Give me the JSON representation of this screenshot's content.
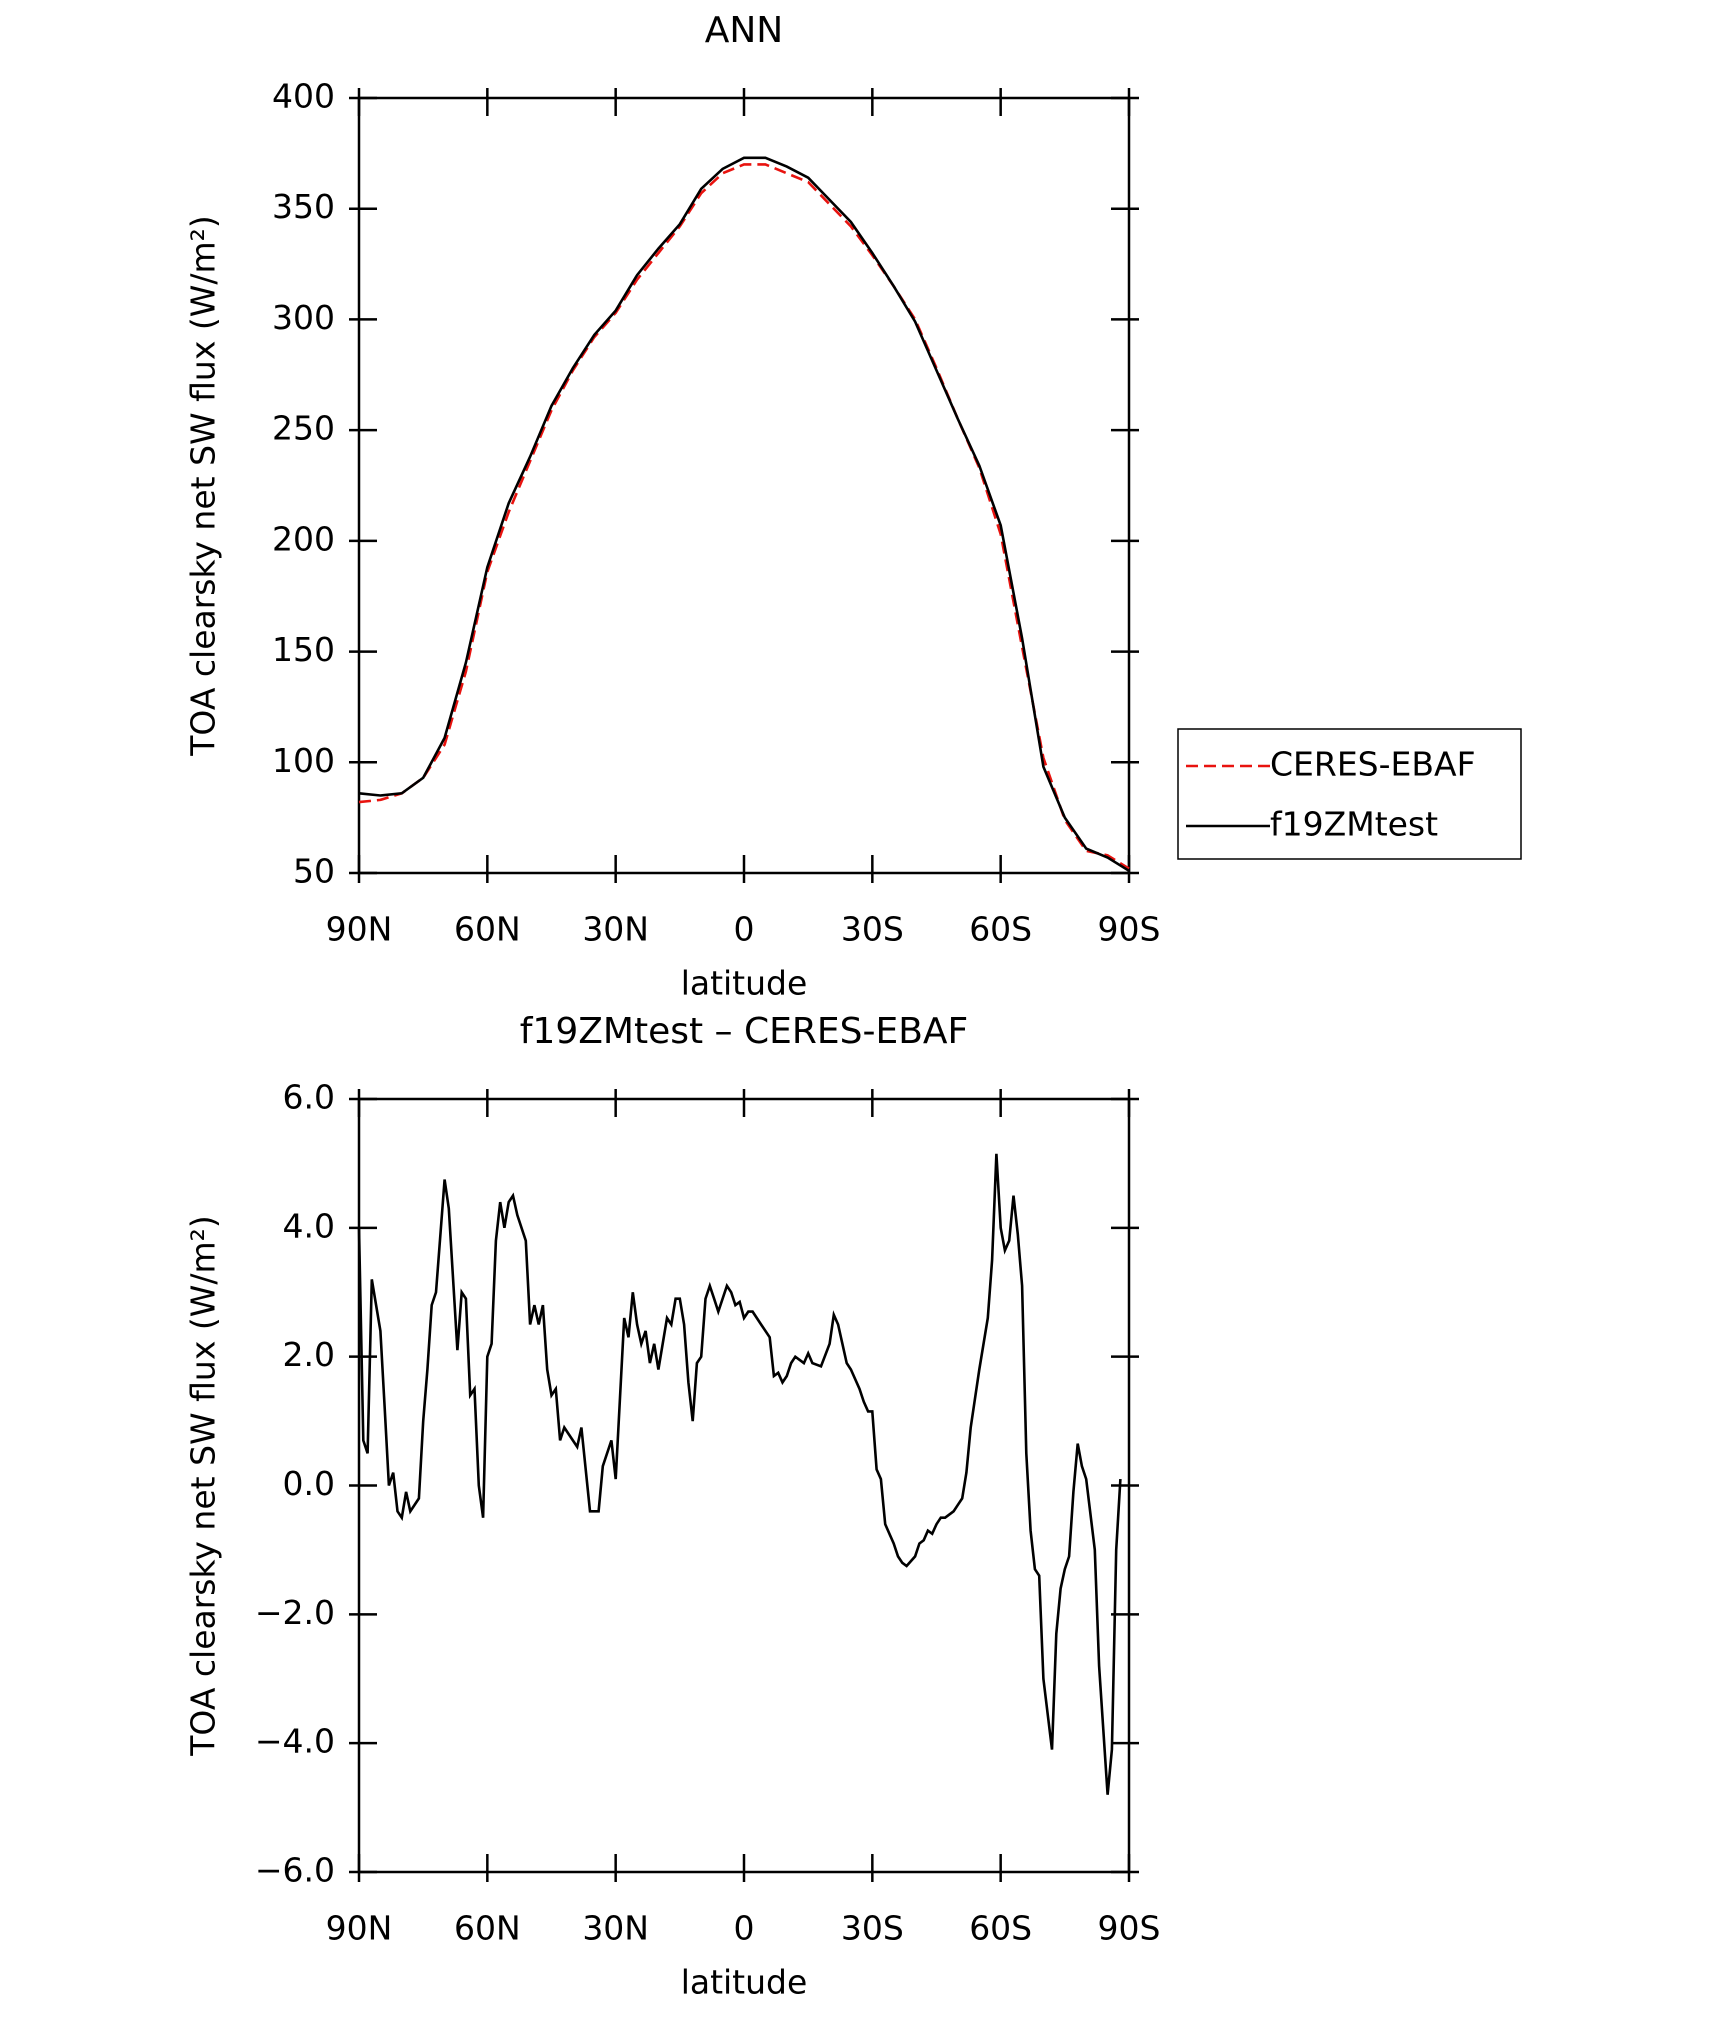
{
  "chart_data": [
    {
      "type": "line",
      "title": "ANN",
      "xlabel": "latitude",
      "ylabel": "TOA clearsky net SW flux (W/m²)",
      "x": [
        90,
        85,
        80,
        75,
        70,
        65,
        60,
        55,
        50,
        45,
        40,
        35,
        30,
        25,
        20,
        15,
        10,
        5,
        0,
        -5,
        -10,
        -15,
        -20,
        -25,
        -30,
        -35,
        -40,
        -45,
        -50,
        -55,
        -60,
        -65,
        -70,
        -75,
        -80,
        -85,
        -90
      ],
      "series": [
        {
          "name": "CERES-EBAF",
          "color": "#e8130f",
          "dash": true,
          "values": [
            82,
            83,
            86,
            93,
            108,
            141,
            186,
            213,
            236,
            259,
            277,
            292,
            303,
            318,
            330,
            342,
            357,
            366,
            370,
            370,
            366,
            362,
            352,
            342,
            329,
            315,
            300,
            278,
            255,
            233,
            203,
            152,
            102,
            74,
            60,
            58,
            52
          ]
        },
        {
          "name": "f19ZMtest",
          "color": "#000000",
          "dash": false,
          "values": [
            86,
            85,
            86,
            93,
            111,
            145,
            188,
            217,
            238,
            261,
            278,
            293,
            304,
            320,
            332,
            343,
            359,
            368,
            373,
            373,
            369,
            364,
            354,
            344,
            330,
            315,
            299,
            277,
            255,
            234,
            207,
            156,
            98,
            75,
            61,
            57,
            51
          ]
        }
      ],
      "xlim": [
        90,
        -90
      ],
      "xticks": [
        {
          "value": 90,
          "label": "90N"
        },
        {
          "value": 60,
          "label": "60N"
        },
        {
          "value": 30,
          "label": "30N"
        },
        0,
        {
          "value": -30,
          "label": "30S"
        },
        {
          "value": -60,
          "label": "60S"
        },
        {
          "value": -90,
          "label": "90S"
        }
      ],
      "ylim": [
        50,
        400
      ],
      "yticks": [
        50,
        100,
        150,
        200,
        250,
        300,
        350,
        400
      ],
      "legend": "right"
    },
    {
      "type": "line",
      "title": "f19ZMtest – CERES-EBAF",
      "xlabel": "latitude",
      "ylabel": "TOA clearsky net SW flux (W/m²)",
      "x": [
        90,
        89,
        88,
        87,
        85,
        84,
        83,
        82,
        81,
        80,
        79,
        78,
        76,
        75,
        74,
        73,
        72,
        70,
        69,
        67,
        66,
        65,
        64,
        63,
        62,
        61,
        60,
        59,
        58,
        57,
        56,
        55,
        54,
        53,
        51,
        50,
        49,
        48,
        47,
        46,
        45,
        44,
        43,
        42,
        41,
        39,
        38,
        36,
        34,
        33,
        31,
        30,
        28,
        27,
        26,
        25,
        24,
        23,
        22,
        21,
        20,
        18,
        17,
        16,
        15,
        14,
        13,
        12,
        11,
        10,
        9,
        8,
        7,
        6,
        4,
        3,
        2,
        1,
        0,
        -1,
        -2,
        -4,
        -6,
        -7,
        -8,
        -9,
        -10,
        -11,
        -12,
        -14,
        -15,
        -16,
        -18,
        -20,
        -21,
        -22,
        -23,
        -24,
        -25,
        -27,
        -28,
        -29,
        -30,
        -31,
        -32,
        -33,
        -35,
        -36,
        -37,
        -38,
        -40,
        -41,
        -42,
        -43,
        -44,
        -45,
        -46,
        -47,
        -49,
        -50,
        -51,
        -52,
        -53,
        -55,
        -57,
        -58,
        -59,
        -60,
        -61,
        -62,
        -63,
        -64,
        -65,
        -66,
        -67,
        -68,
        -69,
        -70,
        -72,
        -73,
        -74,
        -75,
        -76,
        -77,
        -78,
        -79,
        -80,
        -82,
        -83,
        -85,
        -86,
        -87,
        -88
      ],
      "series": [
        {
          "name": "f19ZMtest – CERES-EBAF",
          "color": "#000000",
          "dash": false,
          "values": [
            4.0,
            0.7,
            0.5,
            3.2,
            2.4,
            1.2,
            0.0,
            0.2,
            -0.4,
            -0.5,
            -0.1,
            -0.4,
            -0.2,
            1.0,
            1.8,
            2.8,
            3.0,
            4.75,
            4.3,
            2.1,
            3.0,
            2.9,
            1.4,
            1.5,
            0.0,
            -0.5,
            2.0,
            2.2,
            3.8,
            4.4,
            4.0,
            4.4,
            4.5,
            4.2,
            3.8,
            2.5,
            2.8,
            2.5,
            2.8,
            1.8,
            1.4,
            1.5,
            0.7,
            0.9,
            0.8,
            0.6,
            0.9,
            -0.4,
            -0.4,
            0.3,
            0.7,
            0.1,
            2.6,
            2.3,
            3.0,
            2.5,
            2.2,
            2.4,
            1.9,
            2.2,
            1.8,
            2.6,
            2.5,
            2.9,
            2.9,
            2.5,
            1.6,
            1.0,
            1.9,
            2.0,
            2.9,
            3.1,
            2.9,
            2.7,
            3.1,
            3.0,
            2.8,
            2.85,
            2.6,
            2.7,
            2.7,
            2.5,
            2.3,
            1.7,
            1.75,
            1.6,
            1.7,
            1.9,
            2.0,
            1.9,
            2.05,
            1.9,
            1.85,
            2.2,
            2.65,
            2.5,
            2.2,
            1.9,
            1.8,
            1.5,
            1.3,
            1.15,
            1.15,
            0.25,
            0.1,
            -0.6,
            -0.9,
            -1.1,
            -1.2,
            -1.25,
            -1.1,
            -0.9,
            -0.85,
            -0.7,
            -0.75,
            -0.6,
            -0.5,
            -0.5,
            -0.4,
            -0.3,
            -0.2,
            0.2,
            0.9,
            1.8,
            2.6,
            3.5,
            5.15,
            4.0,
            3.65,
            3.8,
            4.5,
            3.9,
            3.1,
            0.5,
            -0.7,
            -1.3,
            -1.4,
            -3.0,
            -4.1,
            -2.3,
            -1.6,
            -1.3,
            -1.1,
            -0.1,
            0.65,
            0.3,
            0.1,
            -1.0,
            -2.8,
            -4.8,
            -4.1,
            -1.0,
            0.1
          ]
        }
      ],
      "xlim": [
        90,
        -90
      ],
      "xticks": [
        {
          "value": 90,
          "label": "90N"
        },
        {
          "value": 60,
          "label": "60N"
        },
        {
          "value": 30,
          "label": "30N"
        },
        0,
        {
          "value": -30,
          "label": "30S"
        },
        {
          "value": -60,
          "label": "60S"
        },
        {
          "value": -90,
          "label": "90S"
        }
      ],
      "ylim": [
        -6,
        6
      ],
      "yticks": [
        {
          "value": -6,
          "label": "−6.0"
        },
        {
          "value": -4,
          "label": "−4.0"
        },
        {
          "value": -2,
          "label": "−2.0"
        },
        {
          "value": 0,
          "label": "0.0"
        },
        {
          "value": 2,
          "label": "2.0"
        },
        {
          "value": 4,
          "label": "4.0"
        },
        {
          "value": 6,
          "label": "6.0"
        }
      ]
    }
  ]
}
